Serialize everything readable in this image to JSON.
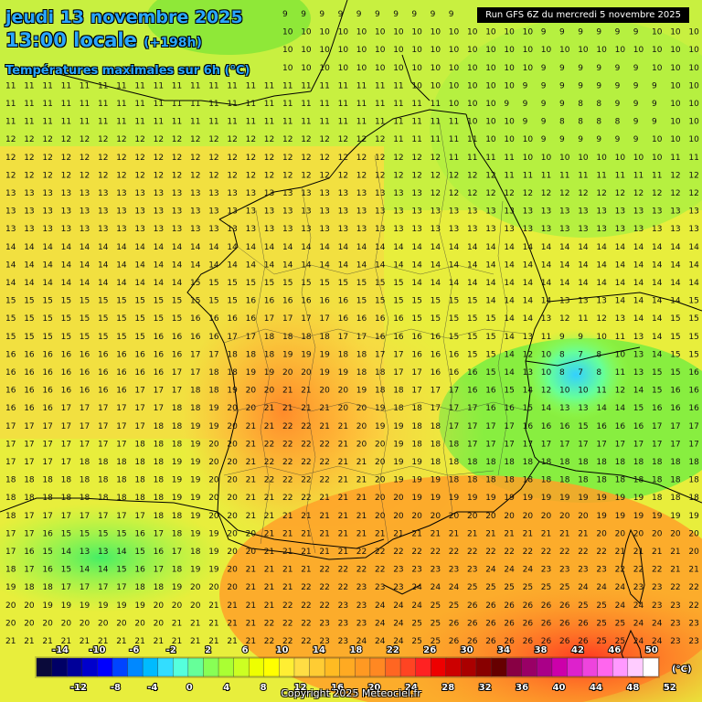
{
  "header": {
    "date_line": "jeudi 13 novembre 2025",
    "time_line": "13:00 locale",
    "lead_time": "(+198h)",
    "field_name": "Températures maximales sur 6h (°C)",
    "run_label": "Run GFS 6Z du mercredi 5 novembre 2025"
  },
  "footer": {
    "copyright": "Copyright 2025 Meteociel.fr"
  },
  "legend": {
    "unit": "(°C)",
    "top_labels": [
      "-14",
      "-10",
      "-6",
      "-2",
      "2",
      "6",
      "10",
      "14",
      "18",
      "22",
      "26",
      "30",
      "34",
      "38",
      "42",
      "46",
      "50"
    ],
    "bottom_labels": [
      "-12",
      "-8",
      "-4",
      "0",
      "4",
      "8",
      "12",
      "16",
      "20",
      "24",
      "28",
      "32",
      "36",
      "40",
      "44",
      "48",
      "52"
    ],
    "colors": [
      "#0a0a3a",
      "#000066",
      "#000099",
      "#0000cc",
      "#0000ff",
      "#0044ff",
      "#0088ff",
      "#00bbff",
      "#33ddff",
      "#55ffdd",
      "#66ff99",
      "#88ff55",
      "#aaff33",
      "#ccff22",
      "#eeff00",
      "#ffff00",
      "#ffee33",
      "#ffdd44",
      "#ffcc33",
      "#ffbb22",
      "#ffaa22",
      "#ff9922",
      "#ff8822",
      "#ff6622",
      "#ff4422",
      "#ff2222",
      "#ee0000",
      "#cc0000",
      "#aa0000",
      "#880000",
      "#660000",
      "#880044",
      "#990066",
      "#aa0088",
      "#cc00aa",
      "#dd22cc",
      "#ee44dd",
      "#ff66ee",
      "#ff99ff",
      "#ffccff",
      "#ffffff"
    ]
  }
}
